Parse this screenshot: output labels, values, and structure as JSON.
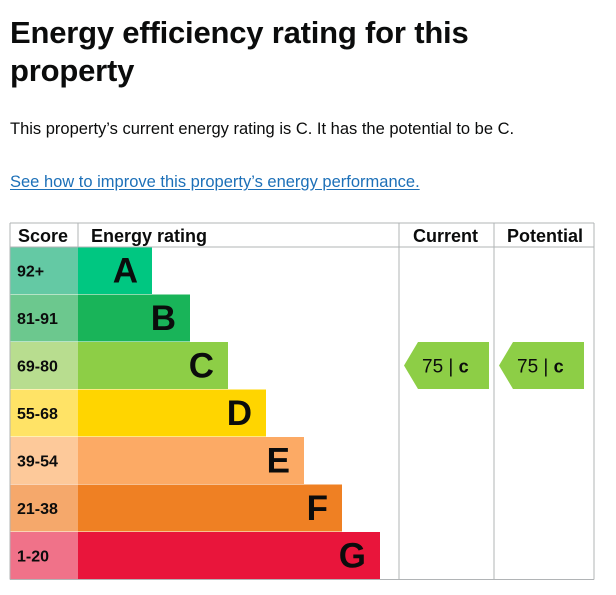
{
  "page": {
    "heading": "Energy efficiency rating for this property",
    "summary": "This property’s current energy rating is C. It has the potential to be C.",
    "improve_link": "See how to improve this property’s energy performance."
  },
  "chart_data": {
    "type": "table",
    "headers": {
      "score": "Score",
      "rating": "Energy rating",
      "current": "Current",
      "potential": "Potential"
    },
    "bands": [
      {
        "letter": "A",
        "score": "92+",
        "color": "#00c781",
        "score_bg": "#64c9a4"
      },
      {
        "letter": "B",
        "score": "81-91",
        "color": "#19b459",
        "score_bg": "#6cc88e"
      },
      {
        "letter": "C",
        "score": "69-80",
        "color": "#8dce46",
        "score_bg": "#b8dd8f"
      },
      {
        "letter": "D",
        "score": "55-68",
        "color": "#ffd500",
        "score_bg": "#ffe366"
      },
      {
        "letter": "E",
        "score": "39-54",
        "color": "#fcaa65",
        "score_bg": "#fdc99a"
      },
      {
        "letter": "F",
        "score": "21-38",
        "color": "#ef8023",
        "score_bg": "#f5a86b"
      },
      {
        "letter": "G",
        "score": "1-20",
        "color": "#e9153b",
        "score_bg": "#f07289"
      }
    ],
    "current": {
      "value": 75,
      "band": "C"
    },
    "potential": {
      "value": 75,
      "band": "C"
    },
    "separator": "|",
    "indicator_color": "#8dce46"
  }
}
